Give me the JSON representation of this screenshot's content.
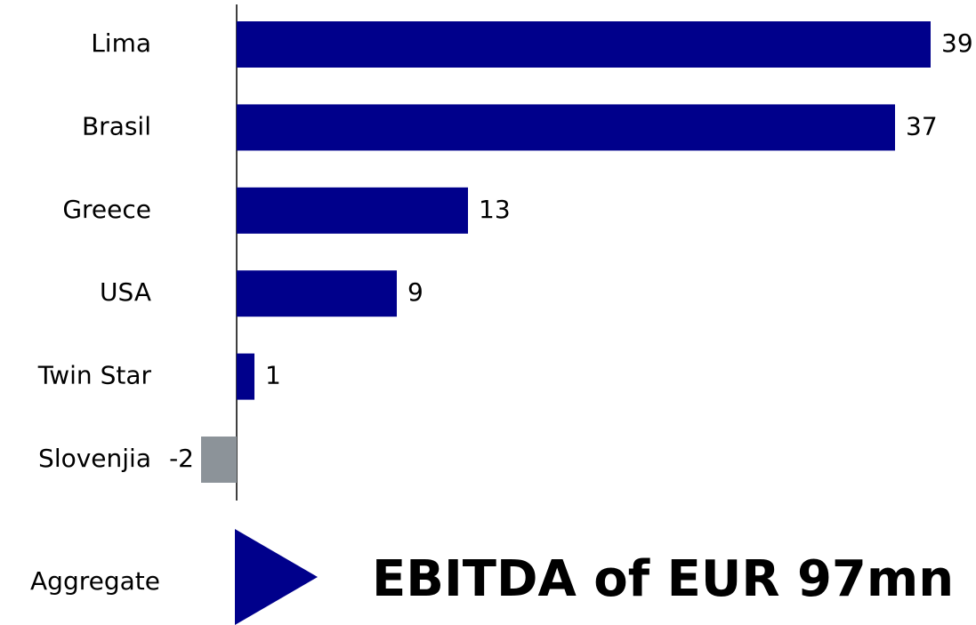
{
  "chart_data": {
    "type": "barh",
    "categories": [
      "Lima",
      "Brasil",
      "Greece",
      "USA",
      "Twin Star",
      "Slovenjia"
    ],
    "values": [
      39,
      37,
      13,
      9,
      1,
      -2
    ],
    "color": "#00008b",
    "negative_color": "#8c9399",
    "aggregate_label": "Aggregate",
    "headline": "EBITDA of EUR 97mn"
  }
}
